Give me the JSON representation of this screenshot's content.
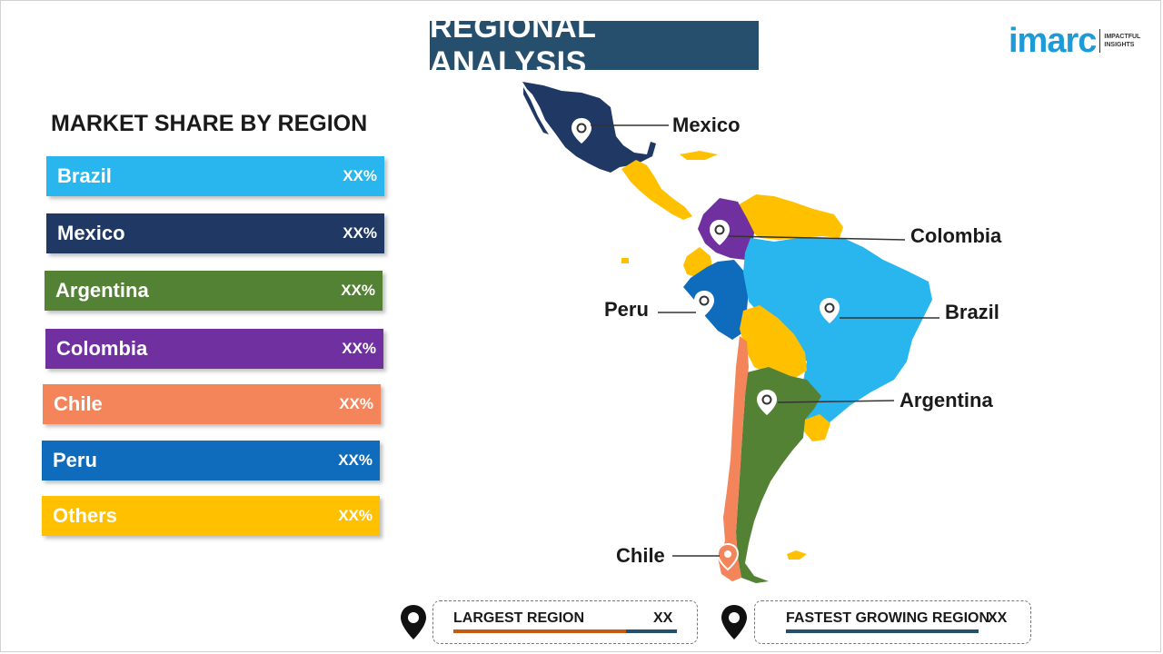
{
  "title": "REGIONAL ANALYSIS",
  "logo": {
    "word": "imarc",
    "tagline_line1": "IMPACTFUL",
    "tagline_line2": "INSIGHTS"
  },
  "market_share": {
    "heading": "MARKET SHARE BY REGION",
    "items": [
      {
        "name": "Brazil",
        "value": "XX%",
        "color": "#29b6ef"
      },
      {
        "name": "Mexico",
        "value": "XX%",
        "color": "#1f3864"
      },
      {
        "name": "Argentina",
        "value": "XX%",
        "color": "#548235"
      },
      {
        "name": "Colombia",
        "value": "XX%",
        "color": "#7030a0"
      },
      {
        "name": "Chile",
        "value": "XX%",
        "color": "#f4845a"
      },
      {
        "name": "Peru",
        "value": "XX%",
        "color": "#0f6cbd"
      },
      {
        "name": "Others",
        "value": "XX%",
        "color": "#ffc000"
      }
    ]
  },
  "map_labels": {
    "mexico": "Mexico",
    "colombia": "Colombia",
    "peru": "Peru",
    "brazil": "Brazil",
    "argentina": "Argentina",
    "chile": "Chile"
  },
  "legend": {
    "largest": {
      "label": "LARGEST REGION",
      "value": "XX",
      "line_color": "#c55a11"
    },
    "fastest": {
      "label": "FASTEST GROWING REGION",
      "value": "XX",
      "line_color": "#264f6d"
    }
  }
}
